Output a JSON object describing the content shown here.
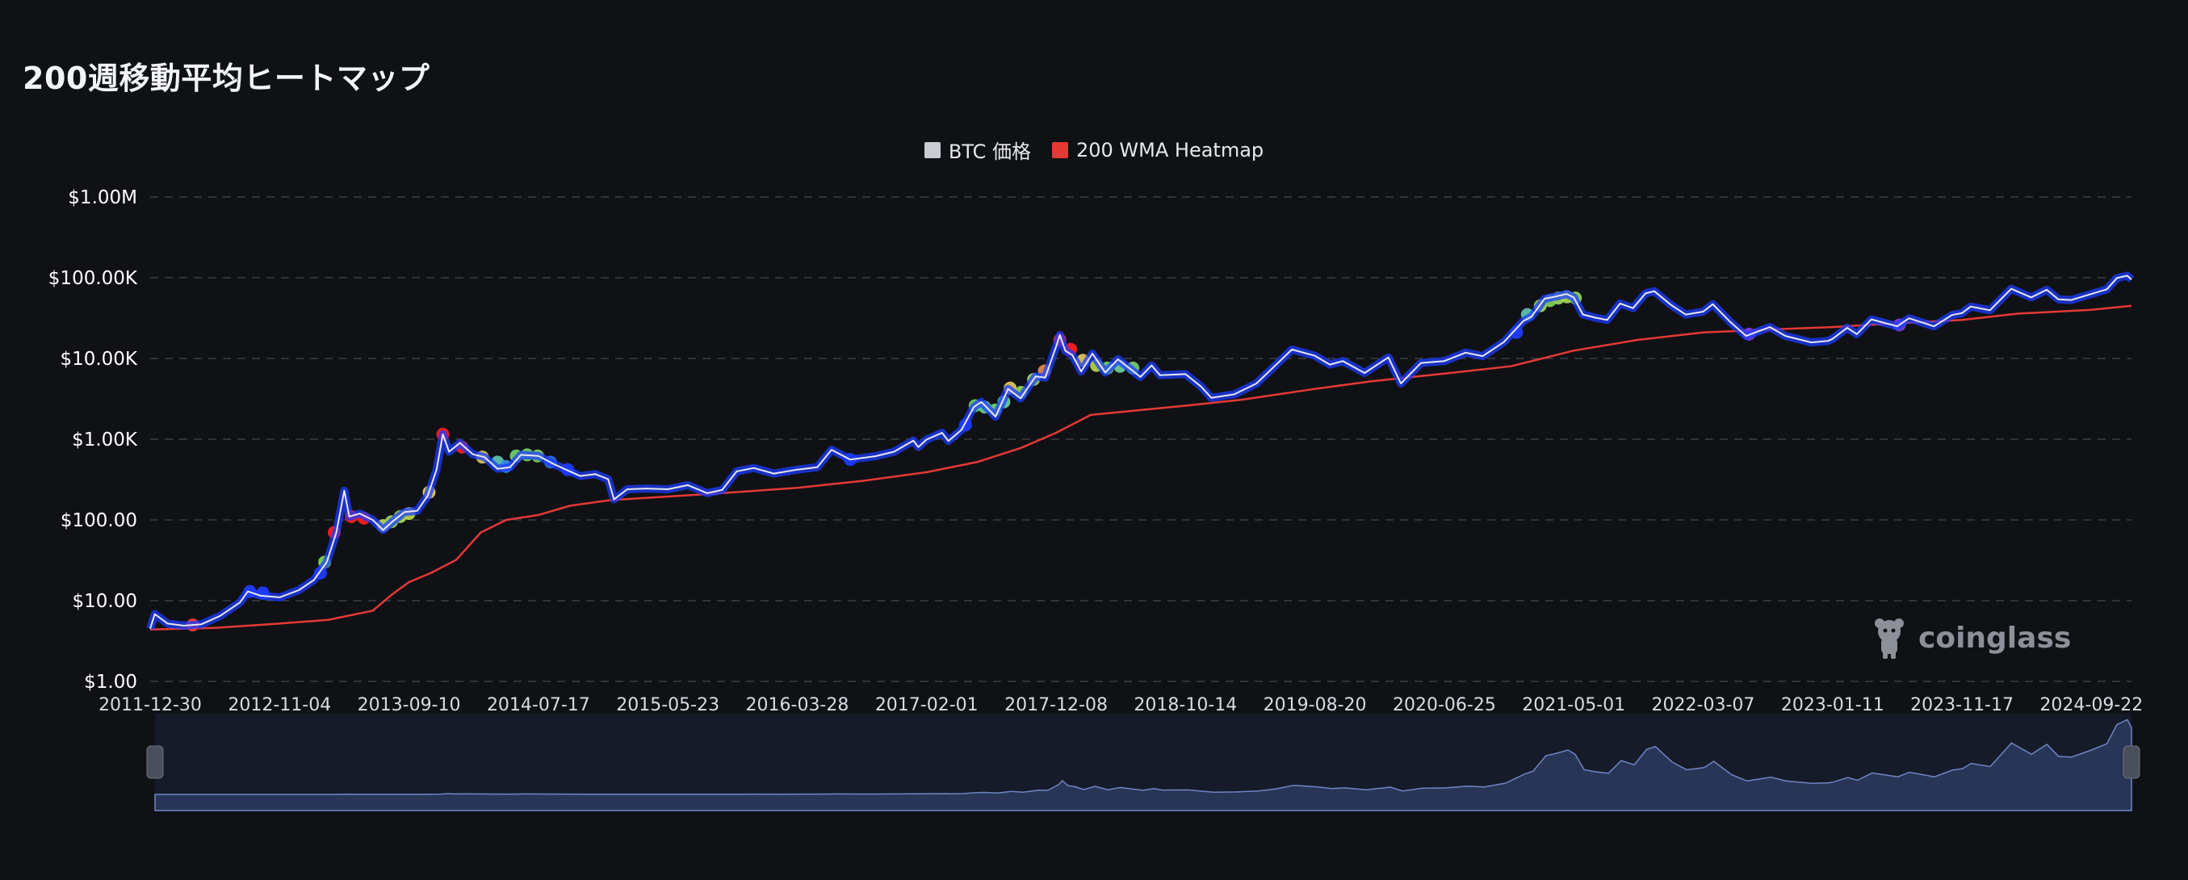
{
  "page": {
    "title": "200週移動平均ヒートマップ"
  },
  "legend": [
    {
      "label": "BTC 価格",
      "color": "#c9ccd3"
    },
    {
      "label": "200 WMA Heatmap",
      "color": "#e53935"
    }
  ],
  "watermark": {
    "text": "coinglass"
  },
  "colors": {
    "background": "#0f1115",
    "grid": "#3a3f4a",
    "price_line": "#e6e8ee",
    "wma_line": "#e53935",
    "navigator_fill": "#283556",
    "navigator_line": "#6f86c4"
  },
  "chart_data": {
    "type": "line",
    "yscale": "log",
    "ylim": [
      1,
      1000000
    ],
    "y_ticks": [
      {
        "value": 1000000,
        "label": "$1.00M"
      },
      {
        "value": 100000,
        "label": "$100.00K"
      },
      {
        "value": 10000,
        "label": "$10.00K"
      },
      {
        "value": 1000,
        "label": "$1.00K"
      },
      {
        "value": 100,
        "label": "$100.00"
      },
      {
        "value": 10,
        "label": "$10.00"
      },
      {
        "value": 1,
        "label": "$1.00"
      }
    ],
    "x_range": [
      "2011-12-30",
      "2024-12-27"
    ],
    "x_ticks": [
      "2011-12-30",
      "2012-11-04",
      "2013-09-10",
      "2014-07-17",
      "2015-05-23",
      "2016-03-28",
      "2017-02-01",
      "2017-12-08",
      "2018-10-14",
      "2019-08-20",
      "2020-06-25",
      "2021-05-01",
      "2022-03-07",
      "2023-01-11",
      "2023-11-17",
      "2024-09-22"
    ],
    "grid": true,
    "legend_position": "top-center",
    "series": [
      {
        "name": "BTC 価格",
        "points": [
          [
            "2011-12-30",
            4.5
          ],
          [
            "2012-01-10",
            6.8
          ],
          [
            "2012-02-10",
            5.2
          ],
          [
            "2012-03-20",
            4.9
          ],
          [
            "2012-05-01",
            5.1
          ],
          [
            "2012-06-15",
            6.5
          ],
          [
            "2012-08-01",
            9.5
          ],
          [
            "2012-08-20",
            13.0
          ],
          [
            "2012-09-20",
            11.5
          ],
          [
            "2012-11-04",
            11.0
          ],
          [
            "2012-12-20",
            13.5
          ],
          [
            "2013-01-25",
            18.0
          ],
          [
            "2013-02-25",
            30.0
          ],
          [
            "2013-03-20",
            70.0
          ],
          [
            "2013-04-08",
            230.0
          ],
          [
            "2013-04-20",
            110.0
          ],
          [
            "2013-05-15",
            120.0
          ],
          [
            "2013-06-15",
            100.0
          ],
          [
            "2013-07-10",
            75.0
          ],
          [
            "2013-08-01",
            95.0
          ],
          [
            "2013-08-30",
            125.0
          ],
          [
            "2013-09-30",
            130.0
          ],
          [
            "2013-10-25",
            200.0
          ],
          [
            "2013-11-15",
            420.0
          ],
          [
            "2013-11-30",
            1150.0
          ],
          [
            "2013-12-15",
            700.0
          ],
          [
            "2014-01-10",
            900.0
          ],
          [
            "2014-02-10",
            650.0
          ],
          [
            "2014-03-10",
            600.0
          ],
          [
            "2014-04-10",
            430.0
          ],
          [
            "2014-05-10",
            450.0
          ],
          [
            "2014-06-05",
            640.0
          ],
          [
            "2014-07-17",
            620.0
          ],
          [
            "2014-08-20",
            500.0
          ],
          [
            "2014-09-25",
            410.0
          ],
          [
            "2014-10-25",
            350.0
          ],
          [
            "2014-11-30",
            370.0
          ],
          [
            "2014-12-31",
            320.0
          ],
          [
            "2015-01-14",
            180.0
          ],
          [
            "2015-02-15",
            240.0
          ],
          [
            "2015-04-01",
            245.0
          ],
          [
            "2015-05-23",
            240.0
          ],
          [
            "2015-07-10",
            270.0
          ],
          [
            "2015-08-25",
            215.0
          ],
          [
            "2015-09-30",
            235.0
          ],
          [
            "2015-11-04",
            400.0
          ],
          [
            "2015-12-15",
            440.0
          ],
          [
            "2016-02-01",
            375.0
          ],
          [
            "2016-03-28",
            420.0
          ],
          [
            "2016-05-15",
            450.0
          ],
          [
            "2016-06-18",
            740.0
          ],
          [
            "2016-08-02",
            560.0
          ],
          [
            "2016-10-01",
            615.0
          ],
          [
            "2016-11-15",
            700.0
          ],
          [
            "2016-12-31",
            960.0
          ],
          [
            "2017-01-12",
            800.0
          ],
          [
            "2017-02-01",
            990.0
          ],
          [
            "2017-03-10",
            1200.0
          ],
          [
            "2017-03-25",
            950.0
          ],
          [
            "2017-04-25",
            1300.0
          ],
          [
            "2017-05-25",
            2500.0
          ],
          [
            "2017-06-12",
            2900.0
          ],
          [
            "2017-07-16",
            1900.0
          ],
          [
            "2017-08-15",
            4200.0
          ],
          [
            "2017-09-14",
            3200.0
          ],
          [
            "2017-10-20",
            6000.0
          ],
          [
            "2017-11-12",
            5800.0
          ],
          [
            "2017-12-08",
            14000.0
          ],
          [
            "2017-12-17",
            19500.0
          ],
          [
            "2017-12-30",
            12500.0
          ],
          [
            "2018-01-16",
            11000.0
          ],
          [
            "2018-02-06",
            6900.0
          ],
          [
            "2018-03-05",
            11500.0
          ],
          [
            "2018-04-05",
            6700.0
          ],
          [
            "2018-05-05",
            9800.0
          ],
          [
            "2018-06-28",
            5900.0
          ],
          [
            "2018-07-25",
            8200.0
          ],
          [
            "2018-08-14",
            6200.0
          ],
          [
            "2018-10-14",
            6400.0
          ],
          [
            "2018-11-20",
            4500.0
          ],
          [
            "2018-12-15",
            3250.0
          ],
          [
            "2019-02-08",
            3600.0
          ],
          [
            "2019-04-02",
            4900.0
          ],
          [
            "2019-05-15",
            8000.0
          ],
          [
            "2019-06-26",
            12900.0
          ],
          [
            "2019-08-20",
            10800.0
          ],
          [
            "2019-09-25",
            8400.0
          ],
          [
            "2019-10-26",
            9300.0
          ],
          [
            "2019-12-17",
            6600.0
          ],
          [
            "2020-02-12",
            10300.0
          ],
          [
            "2020-03-13",
            4900.0
          ],
          [
            "2020-04-30",
            8800.0
          ],
          [
            "2020-06-25",
            9300.0
          ],
          [
            "2020-08-15",
            11800.0
          ],
          [
            "2020-09-25",
            10700.0
          ],
          [
            "2020-11-15",
            16000.0
          ],
          [
            "2020-12-31",
            29000.0
          ],
          [
            "2021-01-20",
            33000.0
          ],
          [
            "2021-02-20",
            55000.0
          ],
          [
            "2021-03-15",
            58000.0
          ],
          [
            "2021-04-14",
            63000.0
          ],
          [
            "2021-05-01",
            57000.0
          ],
          [
            "2021-05-23",
            35000.0
          ],
          [
            "2021-06-22",
            32000.0
          ],
          [
            "2021-07-20",
            30000.0
          ],
          [
            "2021-08-20",
            48000.0
          ],
          [
            "2021-09-20",
            42000.0
          ],
          [
            "2021-10-20",
            64000.0
          ],
          [
            "2021-11-10",
            68000.0
          ],
          [
            "2021-12-20",
            46000.0
          ],
          [
            "2022-01-24",
            35000.0
          ],
          [
            "2022-03-07",
            38000.0
          ],
          [
            "2022-03-30",
            47000.0
          ],
          [
            "2022-05-12",
            28000.0
          ],
          [
            "2022-06-18",
            19000.0
          ],
          [
            "2022-08-14",
            24500.0
          ],
          [
            "2022-09-20",
            19000.0
          ],
          [
            "2022-11-21",
            15800.0
          ],
          [
            "2022-12-31",
            16500.0
          ],
          [
            "2023-01-11",
            17500.0
          ],
          [
            "2023-02-15",
            24000.0
          ],
          [
            "2023-03-10",
            20000.0
          ],
          [
            "2023-04-14",
            30500.0
          ],
          [
            "2023-06-15",
            25000.0
          ],
          [
            "2023-07-13",
            31500.0
          ],
          [
            "2023-09-11",
            25000.0
          ],
          [
            "2023-10-24",
            34500.0
          ],
          [
            "2023-11-17",
            36500.0
          ],
          [
            "2023-12-08",
            44000.0
          ],
          [
            "2024-01-23",
            39500.0
          ],
          [
            "2024-03-14",
            73000.0
          ],
          [
            "2024-05-01",
            57000.0
          ],
          [
            "2024-06-07",
            71000.0
          ],
          [
            "2024-07-05",
            54000.0
          ],
          [
            "2024-08-05",
            53000.0
          ],
          [
            "2024-09-22",
            63000.0
          ],
          [
            "2024-10-29",
            72000.0
          ],
          [
            "2024-11-22",
            99000.0
          ],
          [
            "2024-12-17",
            106000.0
          ],
          [
            "2024-12-27",
            95000.0
          ]
        ]
      },
      {
        "name": "200 WMA Heatmap",
        "points": [
          [
            "2011-12-30",
            4.4
          ],
          [
            "2012-06-01",
            4.6
          ],
          [
            "2012-11-04",
            5.2
          ],
          [
            "2013-03-01",
            5.8
          ],
          [
            "2013-06-15",
            7.5
          ],
          [
            "2013-08-01",
            12.0
          ],
          [
            "2013-09-10",
            17.0
          ],
          [
            "2013-11-01",
            22.0
          ],
          [
            "2014-01-01",
            32.0
          ],
          [
            "2014-03-01",
            70.0
          ],
          [
            "2014-05-01",
            100.0
          ],
          [
            "2014-07-17",
            115.0
          ],
          [
            "2014-10-01",
            150.0
          ],
          [
            "2015-01-01",
            175.0
          ],
          [
            "2015-05-23",
            195.0
          ],
          [
            "2015-10-01",
            215.0
          ],
          [
            "2016-03-28",
            250.0
          ],
          [
            "2016-09-01",
            305.0
          ],
          [
            "2017-02-01",
            390.0
          ],
          [
            "2017-06-01",
            520.0
          ],
          [
            "2017-09-15",
            780.0
          ],
          [
            "2017-12-08",
            1200.0
          ],
          [
            "2018-03-01",
            2000.0
          ],
          [
            "2018-10-14",
            2600.0
          ],
          [
            "2019-03-01",
            3100.0
          ],
          [
            "2019-08-20",
            4200.0
          ],
          [
            "2020-01-01",
            5200.0
          ],
          [
            "2020-06-25",
            6500.0
          ],
          [
            "2020-12-01",
            8000.0
          ],
          [
            "2021-05-01",
            12500.0
          ],
          [
            "2021-10-01",
            17000.0
          ],
          [
            "2022-03-07",
            21000.0
          ],
          [
            "2022-09-01",
            23000.0
          ],
          [
            "2023-01-11",
            24500.0
          ],
          [
            "2023-06-01",
            27000.0
          ],
          [
            "2023-11-17",
            30000.0
          ],
          [
            "2024-04-01",
            36000.0
          ],
          [
            "2024-09-22",
            40000.0
          ],
          [
            "2024-12-27",
            45000.0
          ]
        ]
      }
    ],
    "heatmap_points": [
      [
        "2012-04-10",
        5.0,
        "#ff3b3b"
      ],
      [
        "2012-08-25",
        13.0,
        "#1e3cff"
      ],
      [
        "2012-09-25",
        12.5,
        "#1e3cff"
      ],
      [
        "2013-02-10",
        22.0,
        "#1e3cff"
      ],
      [
        "2013-02-20",
        30.0,
        "#7ed957"
      ],
      [
        "2013-03-15",
        70.0,
        "#ff2020"
      ],
      [
        "2013-04-25",
        110.0,
        "#ff2020"
      ],
      [
        "2013-05-25",
        105.0,
        "#ff2020"
      ],
      [
        "2013-07-10",
        85.0,
        "#b5d94a"
      ],
      [
        "2013-07-30",
        95.0,
        "#9ad65a"
      ],
      [
        "2013-08-20",
        110.0,
        "#a8d850"
      ],
      [
        "2013-09-10",
        120.0,
        "#b8d84e"
      ],
      [
        "2013-10-28",
        220.0,
        "#e9d060"
      ],
      [
        "2013-11-30",
        1150.0,
        "#ff1e1e"
      ],
      [
        "2014-01-15",
        800.0,
        "#ff2020"
      ],
      [
        "2014-03-05",
        600.0,
        "#e0c85a"
      ],
      [
        "2014-04-10",
        520.0,
        "#5cc7b0"
      ],
      [
        "2014-04-30",
        460.0,
        "#3a90e8"
      ],
      [
        "2014-05-25",
        620.0,
        "#70d46a"
      ],
      [
        "2014-06-20",
        640.0,
        "#72d468"
      ],
      [
        "2014-07-15",
        620.0,
        "#7ed45a"
      ],
      [
        "2014-08-15",
        520.0,
        "#2a6ee0"
      ],
      [
        "2014-09-25",
        420.0,
        "#1e3cff"
      ],
      [
        "2016-08-02",
        560.0,
        "#1e3cff"
      ],
      [
        "2017-05-05",
        1500.0,
        "#1e3cff"
      ],
      [
        "2017-05-28",
        2600.0,
        "#6fd16a"
      ],
      [
        "2017-06-20",
        2500.0,
        "#66ce8a"
      ],
      [
        "2017-07-15",
        2300.0,
        "#70d27a"
      ],
      [
        "2017-08-05",
        2900.0,
        "#6ed09a"
      ],
      [
        "2017-08-20",
        4300.0,
        "#e2c55c"
      ],
      [
        "2017-09-15",
        3800.0,
        "#8fd45c"
      ],
      [
        "2017-10-15",
        5500.0,
        "#9ad65a"
      ],
      [
        "2017-11-10",
        7000.0,
        "#e28c50"
      ],
      [
        "2017-12-17",
        17000.0,
        "#ff2020"
      ],
      [
        "2018-01-12",
        13000.0,
        "#ff2020"
      ],
      [
        "2018-02-10",
        9500.0,
        "#e2c55c"
      ],
      [
        "2018-03-15",
        8200.0,
        "#b5d94a"
      ],
      [
        "2018-04-10",
        7600.0,
        "#78d66a"
      ],
      [
        "2018-05-10",
        8000.0,
        "#6ed09a"
      ],
      [
        "2018-06-10",
        7600.0,
        "#74d070"
      ],
      [
        "2020-12-15",
        21000.0,
        "#1e3cff"
      ],
      [
        "2021-01-10",
        35000.0,
        "#5cc7b0"
      ],
      [
        "2021-02-10",
        45000.0,
        "#9ad65a"
      ],
      [
        "2021-03-05",
        52000.0,
        "#7ed45a"
      ],
      [
        "2021-03-25",
        56000.0,
        "#9ad65a"
      ],
      [
        "2021-04-15",
        58000.0,
        "#a8d850"
      ],
      [
        "2021-05-05",
        56000.0,
        "#8fd45c"
      ],
      [
        "2022-06-25",
        20000.0,
        "#7a3ad8"
      ],
      [
        "2023-06-20",
        26000.0,
        "#7a3ad8"
      ]
    ]
  },
  "navigator": {
    "range": [
      "2011-12-30",
      "2024-12-27"
    ]
  }
}
